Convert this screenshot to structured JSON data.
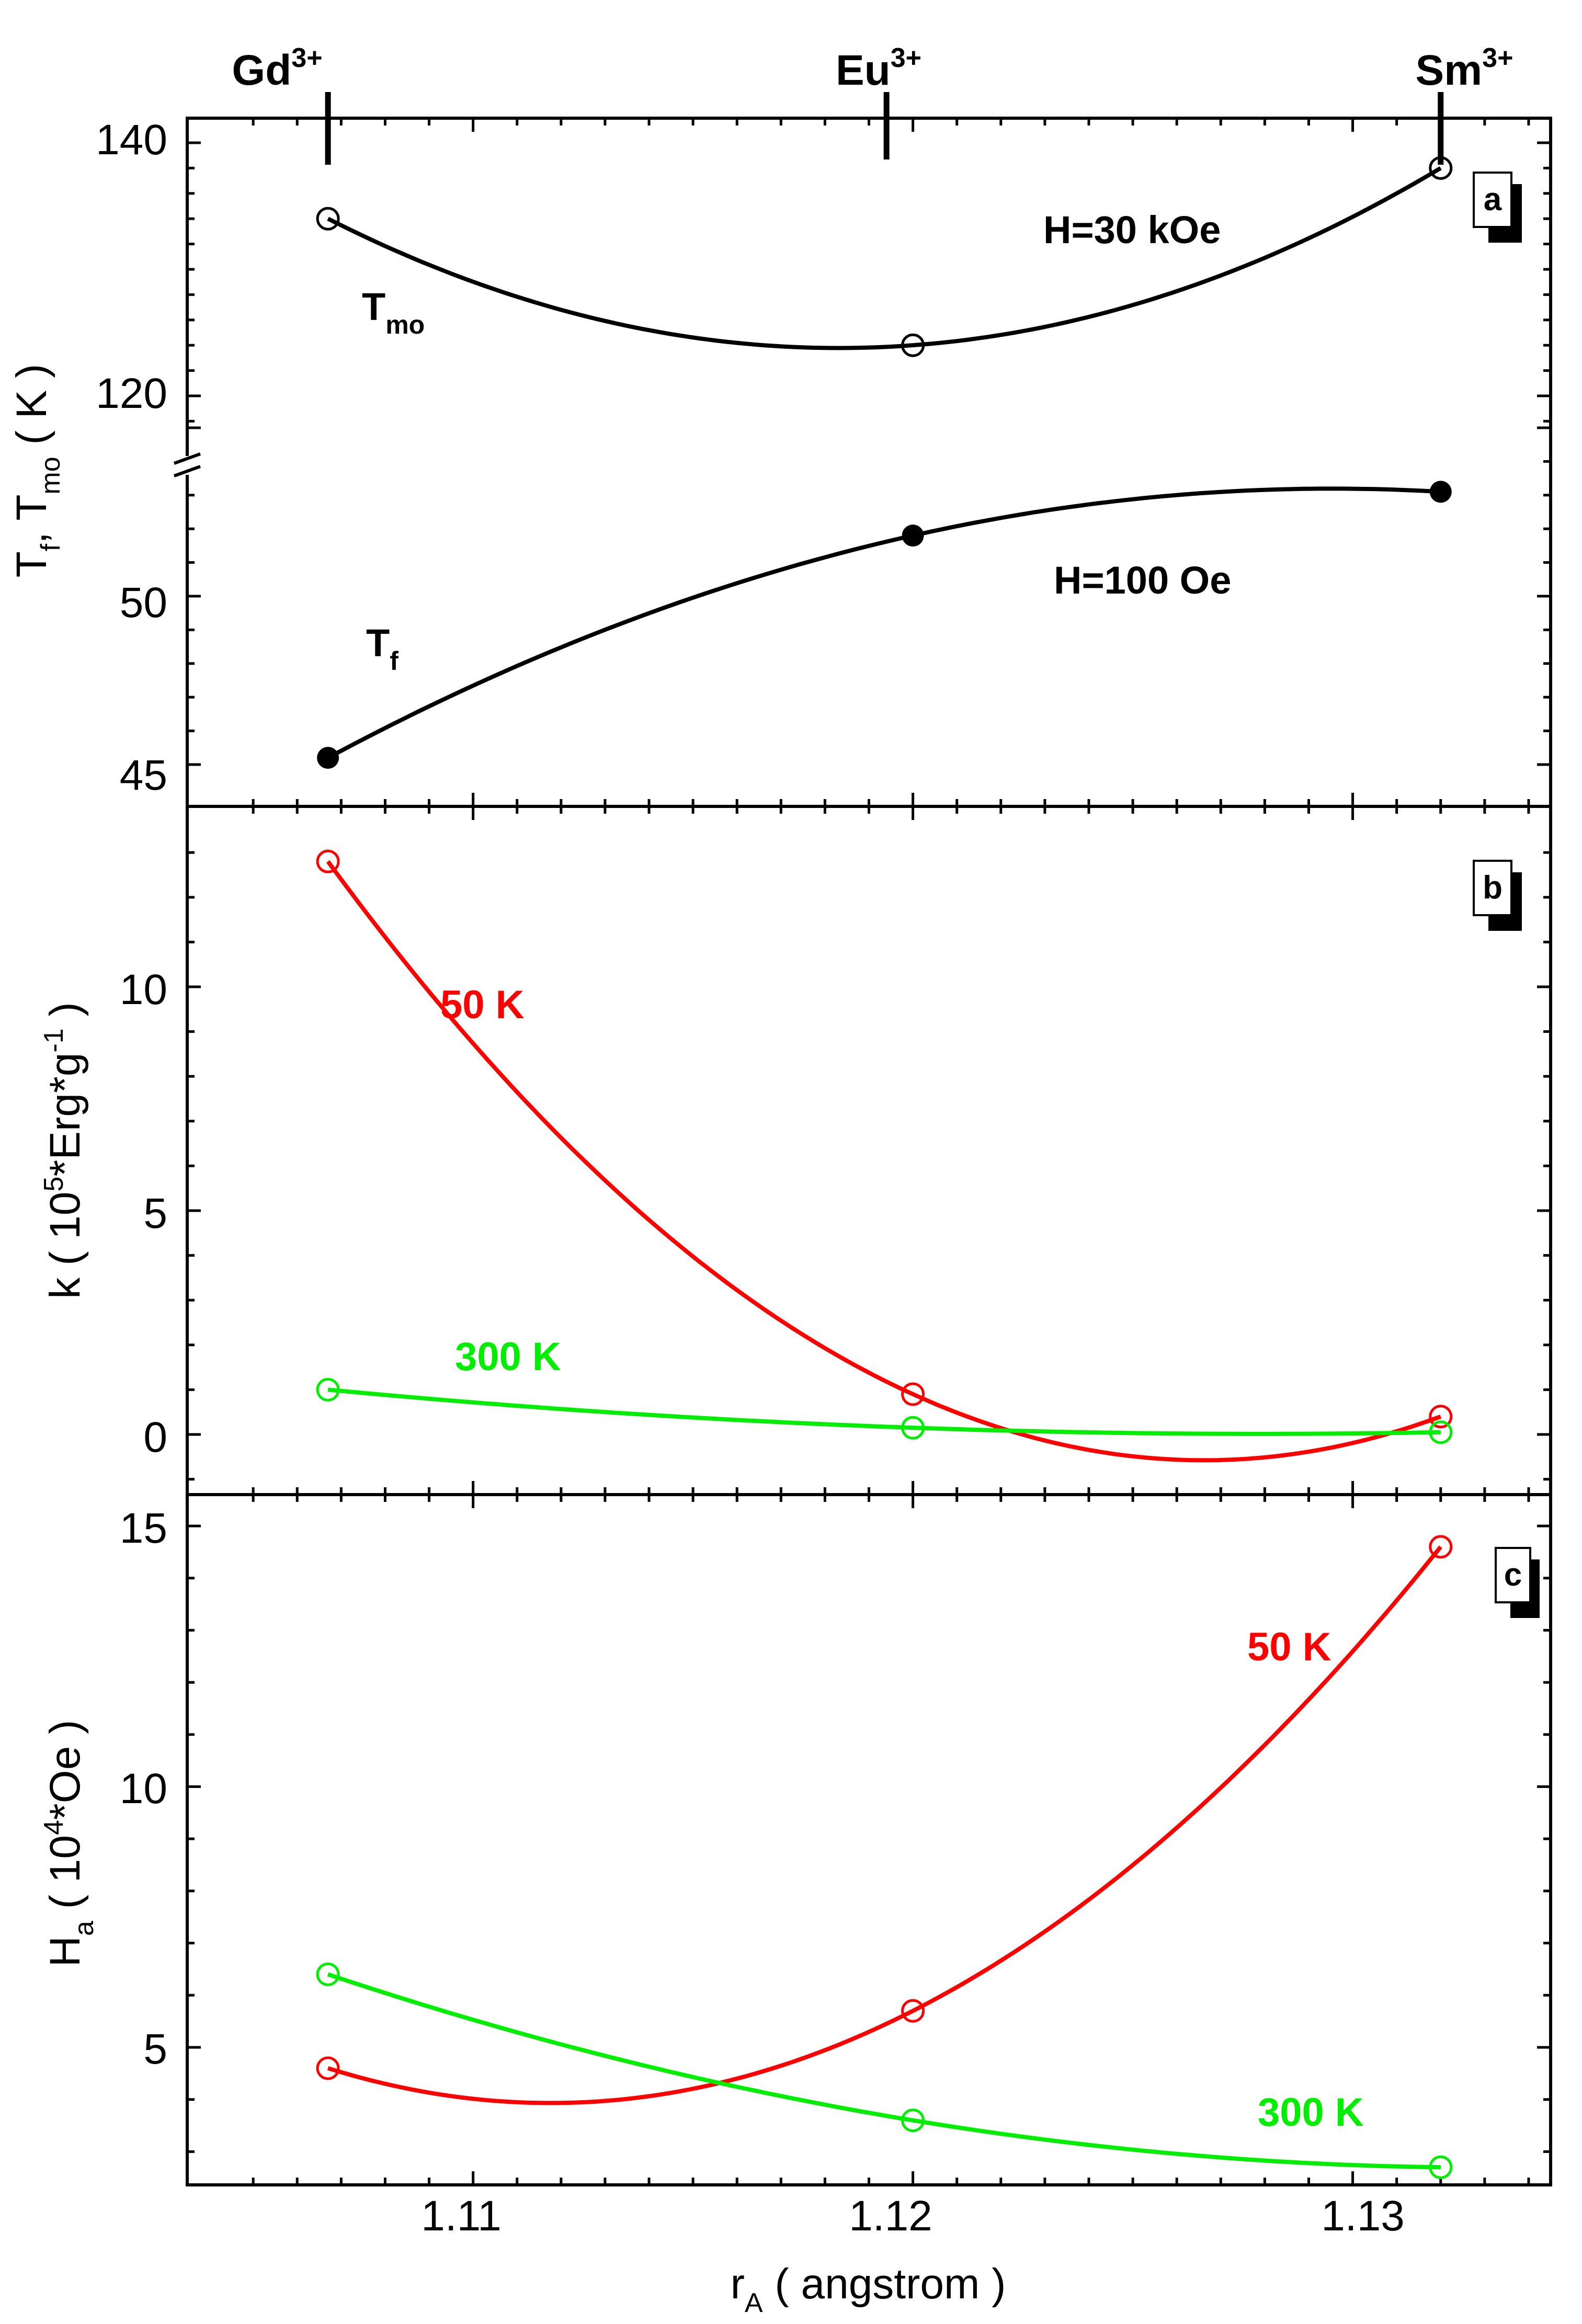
{
  "chart_data": [
    {
      "panel": "a",
      "type": "line",
      "xlabel": "",
      "ylabel_main": "T",
      "ylabel_sub_f": "f",
      "ylabel_sep": ", T",
      "ylabel_sub_mo": "mo",
      "ylabel_unit": " ( K )",
      "xlim": [
        1.1035,
        1.1345
      ],
      "broken_y_axis": true,
      "upper_ylim": [
        116.5,
        142
      ],
      "upper_yticks": [
        "120",
        "140"
      ],
      "lower_ylim": [
        44.3,
        56.5
      ],
      "lower_yticks": [
        "45",
        "50"
      ],
      "element_markers": [
        {
          "label": "Gd",
          "sup": "3+",
          "x": 1.1067
        },
        {
          "label": "Eu",
          "sup": "3+",
          "x": 1.1194
        },
        {
          "label": "Sm",
          "sup": "3+",
          "x": 1.132
        }
      ],
      "series": [
        {
          "name": "T_mo",
          "label": "T",
          "label_sub": "mo",
          "field_label": "H=30 kOe",
          "marker": "open-circle",
          "color": "#000000",
          "part": "upper",
          "x": [
            1.1067,
            1.12,
            1.132
          ],
          "y": [
            134.0,
            124.0,
            138.0
          ]
        },
        {
          "name": "T_f",
          "label": "T",
          "label_sub": "f",
          "field_label": "H=100 Oe",
          "marker": "filled-circle",
          "color": "#000000",
          "part": "lower",
          "x": [
            1.1067,
            1.12,
            1.132
          ],
          "y": [
            45.2,
            51.8,
            53.1
          ]
        }
      ]
    },
    {
      "panel": "b",
      "type": "line",
      "xlabel": "",
      "ylabel_pre": "k ( 10",
      "ylabel_sup1": "5",
      "ylabel_mid": "*Erg*g",
      "ylabel_sup2": "-1",
      "ylabel_post": " )",
      "xlim": [
        1.1035,
        1.1345
      ],
      "ylim": [
        -1.5,
        14
      ],
      "yticks": [
        "0",
        "5",
        "10"
      ],
      "series": [
        {
          "name": "50 K",
          "label": "50 K",
          "color": "#ff0000",
          "marker": "open-circle",
          "x": [
            1.1067,
            1.12,
            1.132
          ],
          "y": [
            12.8,
            0.9,
            0.4
          ]
        },
        {
          "name": "300 K",
          "label": "300 K",
          "color": "#00ee00",
          "marker": "open-circle",
          "x": [
            1.1067,
            1.12,
            1.132
          ],
          "y": [
            1.0,
            0.15,
            0.05
          ]
        }
      ]
    },
    {
      "panel": "c",
      "type": "line",
      "ylabel_main": "H",
      "ylabel_sub": "a",
      "ylabel_pre": " ( 10",
      "ylabel_sup": "4",
      "ylabel_post": "*Oe )",
      "xlabel_main": "r",
      "xlabel_sub": "A",
      "xlabel_post": " ( angstrom )",
      "xlim": [
        1.1035,
        1.1345
      ],
      "xticks": [
        "1.11",
        "1.12",
        "1.13"
      ],
      "ylim": [
        2.5,
        15.6
      ],
      "yticks": [
        "5",
        "10",
        "15"
      ],
      "series": [
        {
          "name": "50 K",
          "label": "50 K",
          "color": "#ff0000",
          "marker": "open-circle",
          "x": [
            1.1067,
            1.12,
            1.132
          ],
          "y": [
            4.6,
            5.7,
            14.6
          ]
        },
        {
          "name": "300 K",
          "label": "300 K",
          "color": "#00ee00",
          "marker": "open-circle",
          "x": [
            1.1067,
            1.12,
            1.132
          ],
          "y": [
            6.4,
            3.6,
            2.7
          ]
        }
      ]
    }
  ]
}
